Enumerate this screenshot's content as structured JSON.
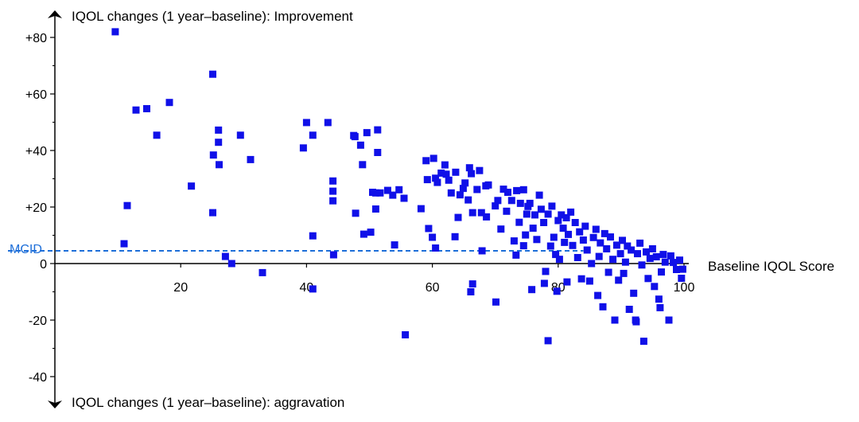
{
  "chart_data": {
    "type": "scatter",
    "title": "",
    "ylabel_top": "IQOL changes (1 year–baseline): Improvement",
    "ylabel_bottom": "IQOL changes (1 year–baseline): aggravation",
    "xlabel": "Baseline IQOL Score",
    "xlim": [
      0,
      100
    ],
    "ylim": [
      -47,
      92
    ],
    "x_ticks": [
      {
        "value": 20,
        "label": "20"
      },
      {
        "value": 40,
        "label": "40"
      },
      {
        "value": 60,
        "label": "60"
      },
      {
        "value": 80,
        "label": "80"
      },
      {
        "value": 100,
        "label": "100"
      }
    ],
    "y_ticks": [
      {
        "value": 80,
        "label": "+80"
      },
      {
        "value": 60,
        "label": "+60"
      },
      {
        "value": 40,
        "label": "+40"
      },
      {
        "value": 20,
        "label": "+20"
      },
      {
        "value": 0,
        "label": "0"
      },
      {
        "value": -20,
        "label": "-20"
      },
      {
        "value": -40,
        "label": "-40"
      }
    ],
    "reference_line": {
      "label": "MCID",
      "y": 4.5,
      "x_end": 84,
      "color": "#1e6fd9",
      "style": "dashed"
    },
    "grid": false,
    "marker_color": "#1010e8",
    "series": [
      {
        "points": [
          [
            9.6,
            82
          ],
          [
            11,
            7
          ],
          [
            11.5,
            20.5
          ],
          [
            12.9,
            54.3
          ],
          [
            14.6,
            54.8
          ],
          [
            16.2,
            45.4
          ],
          [
            18.2,
            57
          ],
          [
            21.7,
            27.4
          ],
          [
            25.1,
            67
          ],
          [
            25.1,
            18
          ],
          [
            25.2,
            38.4
          ],
          [
            26,
            47.2
          ],
          [
            26,
            42.9
          ],
          [
            26.1,
            35
          ],
          [
            27.1,
            2.5
          ],
          [
            28.1,
            0
          ],
          [
            29.5,
            45.4
          ],
          [
            31.1,
            36.8
          ],
          [
            33,
            -3.2
          ],
          [
            39.5,
            40.9
          ],
          [
            40,
            49.9
          ],
          [
            41,
            45.4
          ],
          [
            41,
            -9
          ],
          [
            41,
            9.8
          ],
          [
            43.4,
            49.9
          ],
          [
            44.2,
            29.2
          ],
          [
            44.2,
            25.6
          ],
          [
            44.2,
            22.2
          ],
          [
            44.3,
            3.1
          ],
          [
            47.5,
            45.3
          ],
          [
            47.7,
            44.9
          ],
          [
            47.8,
            17.8
          ],
          [
            48.6,
            41.9
          ],
          [
            48.9,
            35
          ],
          [
            49.1,
            10.4
          ],
          [
            49.6,
            46.3
          ],
          [
            50.2,
            11.1
          ],
          [
            50.5,
            25.2
          ],
          [
            51,
            25
          ],
          [
            51,
            19.3
          ],
          [
            51.3,
            39.3
          ],
          [
            51.3,
            47.3
          ],
          [
            51.7,
            25
          ],
          [
            52.9,
            25.9
          ],
          [
            53.7,
            24.2
          ],
          [
            54,
            6.6
          ],
          [
            54.7,
            26.1
          ],
          [
            55.5,
            23.1
          ],
          [
            55.7,
            -25.2
          ],
          [
            58.2,
            19.4
          ],
          [
            59,
            36.4
          ],
          [
            59.2,
            29.7
          ],
          [
            59.4,
            12.4
          ],
          [
            60,
            9.3
          ],
          [
            60.2,
            37.2
          ],
          [
            60.5,
            5.5
          ],
          [
            60.5,
            30.2
          ],
          [
            60.8,
            28.7
          ],
          [
            61.4,
            32
          ],
          [
            62,
            34.9
          ],
          [
            62.2,
            31.6
          ],
          [
            62.6,
            29.5
          ],
          [
            63,
            25
          ],
          [
            63.6,
            9.5
          ],
          [
            63.7,
            32.3
          ],
          [
            64.1,
            16.3
          ],
          [
            64.4,
            24.3
          ],
          [
            64.9,
            26.6
          ],
          [
            65.2,
            28.5
          ],
          [
            65.7,
            22.5
          ],
          [
            65.9,
            33.9
          ],
          [
            66.1,
            -10
          ],
          [
            66.2,
            31.8
          ],
          [
            66.4,
            18
          ],
          [
            66.4,
            -7.2
          ],
          [
            67.1,
            26.2
          ],
          [
            67.5,
            32.9
          ],
          [
            67.8,
            18
          ],
          [
            67.9,
            4.5
          ],
          [
            68.5,
            27.5
          ],
          [
            68.6,
            16.5
          ],
          [
            68.9,
            27.8
          ],
          [
            70,
            20.4
          ],
          [
            70.1,
            -13.6
          ],
          [
            70.4,
            22.3
          ],
          [
            70.9,
            12.2
          ],
          [
            71.3,
            26.3
          ],
          [
            71.8,
            18.5
          ],
          [
            72,
            25.2
          ],
          [
            72.6,
            22.3
          ],
          [
            73,
            8
          ],
          [
            73.3,
            3
          ],
          [
            73.4,
            25.8
          ],
          [
            73.8,
            14.6
          ],
          [
            74,
            21.3
          ],
          [
            74.5,
            26.1
          ],
          [
            74.5,
            6.3
          ],
          [
            74.8,
            10.1
          ],
          [
            75,
            17.5
          ],
          [
            75.2,
            20.2
          ],
          [
            75.5,
            21.3
          ],
          [
            75.8,
            -9.2
          ],
          [
            76,
            12.5
          ],
          [
            76.3,
            17.2
          ],
          [
            76.6,
            8.5
          ],
          [
            77,
            24.2
          ],
          [
            77.3,
            19.2
          ],
          [
            77.7,
            14.5
          ],
          [
            77.8,
            -7
          ],
          [
            78,
            -2.8
          ],
          [
            78.4,
            17.5
          ],
          [
            78.4,
            -27.3
          ],
          [
            78.8,
            6.2
          ],
          [
            79,
            20.3
          ],
          [
            79.3,
            9.3
          ],
          [
            79.6,
            3.2
          ],
          [
            79.8,
            -9.8
          ],
          [
            80,
            15.2
          ],
          [
            80.2,
            1.5
          ],
          [
            80.5,
            17.2
          ],
          [
            80.8,
            12.5
          ],
          [
            81,
            7.5
          ],
          [
            81.3,
            16.2
          ],
          [
            81.4,
            -6.5
          ],
          [
            81.6,
            10.3
          ],
          [
            82,
            18.2
          ],
          [
            82.3,
            6.4
          ],
          [
            82.7,
            14.5
          ],
          [
            83.1,
            2.1
          ],
          [
            83.4,
            11.2
          ],
          [
            83.7,
            -5.4
          ],
          [
            84,
            8.3
          ],
          [
            84.3,
            13.2
          ],
          [
            84.6,
            4.8
          ],
          [
            85,
            -6.2
          ],
          [
            85.3,
            0
          ],
          [
            85.6,
            9.2
          ],
          [
            86,
            12.1
          ],
          [
            86.3,
            -11.3
          ],
          [
            86.5,
            2.5
          ],
          [
            86.7,
            7.3
          ],
          [
            87.1,
            -15.3
          ],
          [
            87.4,
            10.6
          ],
          [
            87.7,
            5.2
          ],
          [
            88,
            -3.1
          ],
          [
            88.3,
            9.4
          ],
          [
            88.7,
            1.5
          ],
          [
            89,
            -20
          ],
          [
            89.3,
            6.5
          ],
          [
            89.6,
            -5.9
          ],
          [
            89.9,
            3.5
          ],
          [
            90.2,
            8.2
          ],
          [
            90.4,
            -3.5
          ],
          [
            90.7,
            0.5
          ],
          [
            91,
            6.2
          ],
          [
            91.3,
            -16.2
          ],
          [
            91.6,
            4.8
          ],
          [
            92,
            -10.5
          ],
          [
            92.3,
            -20
          ],
          [
            92.4,
            -20.6
          ],
          [
            92.6,
            3.5
          ],
          [
            93,
            7.2
          ],
          [
            93.3,
            -0.5
          ],
          [
            93.6,
            -27.5
          ],
          [
            94,
            4.1
          ],
          [
            94.3,
            -5.3
          ],
          [
            94.6,
            1.8
          ],
          [
            95,
            5.2
          ],
          [
            95.3,
            -8.1
          ],
          [
            95.6,
            2.4
          ],
          [
            96,
            -12.6
          ],
          [
            96.2,
            -15.6
          ],
          [
            96.4,
            -3
          ],
          [
            96.7,
            3.2
          ],
          [
            97,
            0.5
          ],
          [
            97.6,
            -20
          ],
          [
            97.9,
            2.7
          ],
          [
            98.3,
            0.4
          ],
          [
            98.8,
            -2.1
          ],
          [
            99.3,
            1.2
          ],
          [
            99.6,
            -5.2
          ],
          [
            99.8,
            -2
          ]
        ]
      }
    ]
  }
}
